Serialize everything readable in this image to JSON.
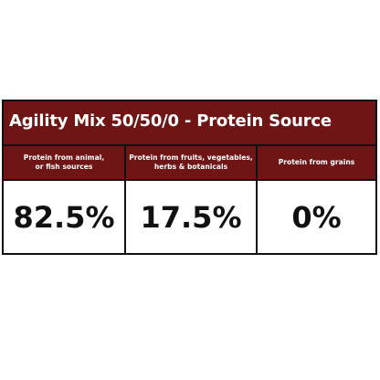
{
  "title": "Agility Mix 50/50/0 - Protein Source",
  "columns": [
    {
      "label": "Protein from animal,\nor fish sources",
      "value": "82.5%"
    },
    {
      "label": "Protein from fruits, vegetables,\nherbs & botanicals",
      "value": "17.5%"
    },
    {
      "label": "Protein from grains",
      "value": "0%"
    }
  ],
  "colors": {
    "header_background": "#6f1515",
    "header_text": "#ffffff",
    "value_text": "#111111",
    "border": "#111111",
    "background": "#ffffff"
  }
}
